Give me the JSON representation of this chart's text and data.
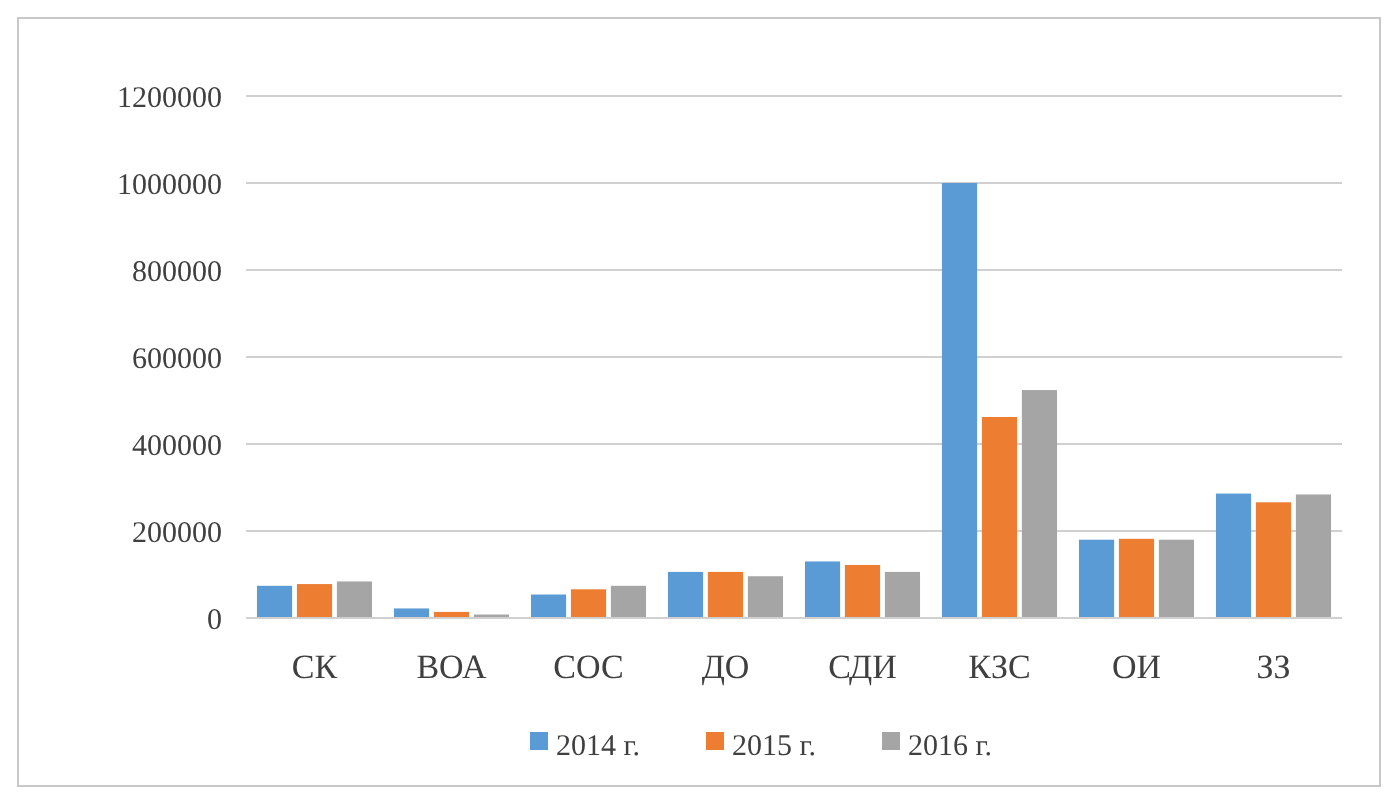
{
  "chart_data": {
    "type": "bar",
    "categories": [
      "СК",
      "ВОА",
      "СОС",
      "ДО",
      "СДИ",
      "КЗС",
      "ОИ",
      "ЗЗ"
    ],
    "series": [
      {
        "name": "2014 г.",
        "color": "#5b9bd5",
        "values": [
          74000,
          22000,
          54000,
          106000,
          130000,
          1000000,
          180000,
          286000
        ]
      },
      {
        "name": "2015 г.",
        "color": "#ed7d31",
        "values": [
          78000,
          14000,
          66000,
          106000,
          122000,
          462000,
          182000,
          266000
        ]
      },
      {
        "name": "2016 г.",
        "color": "#a5a5a5",
        "values": [
          84000,
          8000,
          74000,
          96000,
          106000,
          524000,
          180000,
          284000
        ]
      }
    ],
    "ylim": [
      0,
      1200000
    ],
    "yticks": [
      0,
      200000,
      400000,
      600000,
      800000,
      1000000,
      1200000
    ],
    "grid": "y",
    "legend": "bottom"
  }
}
